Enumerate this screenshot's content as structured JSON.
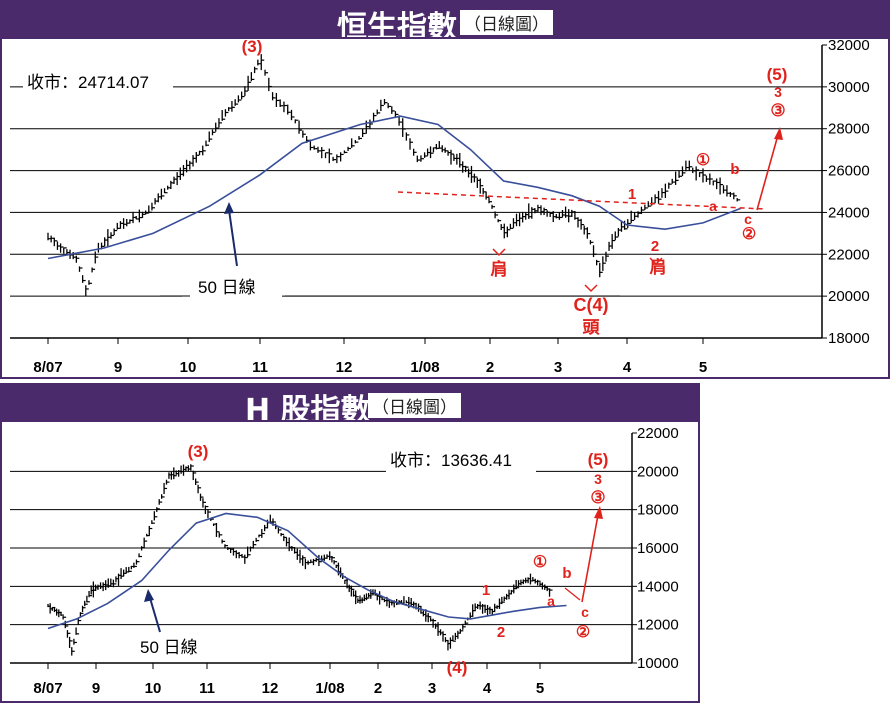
{
  "charts": [
    {
      "title": "恒生指數",
      "subtitle": "（日線圖）",
      "close_label": "收市：24714.07",
      "ma_label": "50 日線",
      "y_ticks": [
        "32000",
        "30000",
        "28000",
        "26000",
        "24000",
        "22000",
        "20000",
        "18000"
      ],
      "x_ticks": [
        "8/07",
        "9",
        "10",
        "11",
        "12",
        "1/08",
        "2",
        "3",
        "4",
        "5"
      ],
      "annotations": {
        "peak3": "(3)",
        "w5": "(5)",
        "w5_3": "3",
        "w5_circ3": "③",
        "circ1": "①",
        "b": "b",
        "a": "a",
        "c": "c",
        "circ2": "②",
        "one": "1",
        "two": "2",
        "shoulder_l": "肩",
        "shoulder_r": "肩",
        "c4": "C(4)",
        "head": "頭"
      }
    },
    {
      "title": "H 股指數",
      "subtitle": "（日線圖）",
      "close_label": "收市：13636.41",
      "ma_label": "50 日線",
      "y_ticks": [
        "22000",
        "20000",
        "18000",
        "16000",
        "14000",
        "12000",
        "10000"
      ],
      "x_ticks": [
        "8/07",
        "9",
        "10",
        "11",
        "12",
        "1/08",
        "2",
        "3",
        "4",
        "5"
      ],
      "annotations": {
        "peak3": "(3)",
        "w5": "(5)",
        "w5_3": "3",
        "w5_circ3": "③",
        "circ1": "①",
        "b": "b",
        "a": "a",
        "c": "c",
        "circ2": "②",
        "one": "1",
        "two": "2",
        "w4": "(4)"
      }
    }
  ],
  "chart_data": [
    {
      "type": "line",
      "title": "恒生指數（日線圖）",
      "ylim": [
        18000,
        32000
      ],
      "grid": true,
      "x": [
        "8/07",
        "9",
        "10",
        "11",
        "12",
        "1/08",
        "2",
        "3",
        "4",
        "5"
      ],
      "series": [
        {
          "name": "price",
          "points": [
            [
              0.0,
              22800
            ],
            [
              0.2,
              22300
            ],
            [
              0.4,
              21800
            ],
            [
              0.55,
              20200
            ],
            [
              0.7,
              22200
            ],
            [
              1.0,
              23300
            ],
            [
              1.4,
              24000
            ],
            [
              1.8,
              25500
            ],
            [
              2.2,
              27000
            ],
            [
              2.5,
              28700
            ],
            [
              2.8,
              29800
            ],
            [
              3.0,
              31400
            ],
            [
              3.15,
              29500
            ],
            [
              3.35,
              28800
            ],
            [
              3.6,
              27200
            ],
            [
              3.9,
              26500
            ],
            [
              4.2,
              27600
            ],
            [
              4.5,
              29300
            ],
            [
              4.7,
              28300
            ],
            [
              4.9,
              26500
            ],
            [
              5.2,
              27200
            ],
            [
              5.5,
              26500
            ],
            [
              5.8,
              25500
            ],
            [
              6.0,
              24500
            ],
            [
              6.2,
              23000
            ],
            [
              6.4,
              23600
            ],
            [
              6.7,
              24200
            ],
            [
              6.95,
              23800
            ],
            [
              7.2,
              24000
            ],
            [
              7.45,
              22800
            ],
            [
              7.6,
              21200
            ],
            [
              7.8,
              22800
            ],
            [
              8.0,
              23500
            ],
            [
              8.25,
              24300
            ],
            [
              8.45,
              24800
            ],
            [
              8.6,
              25500
            ],
            [
              8.8,
              26200
            ],
            [
              9.0,
              25700
            ],
            [
              9.25,
              25200
            ],
            [
              9.45,
              24600
            ]
          ]
        },
        {
          "name": "50 日線",
          "points": [
            [
              0.0,
              21800
            ],
            [
              0.8,
              22300
            ],
            [
              1.5,
              23000
            ],
            [
              2.3,
              24300
            ],
            [
              3.0,
              25800
            ],
            [
              3.5,
              27300
            ],
            [
              4.2,
              28200
            ],
            [
              4.7,
              28600
            ],
            [
              5.2,
              28200
            ],
            [
              5.7,
              27000
            ],
            [
              6.2,
              25500
            ],
            [
              6.7,
              25200
            ],
            [
              7.2,
              24800
            ],
            [
              7.6,
              24300
            ],
            [
              8.0,
              23400
            ],
            [
              8.5,
              23200
            ],
            [
              9.0,
              23500
            ],
            [
              9.5,
              24200
            ]
          ]
        }
      ]
    },
    {
      "type": "line",
      "title": "H 股指數（日線圖）",
      "ylim": [
        10000,
        22000
      ],
      "grid": true,
      "x": [
        "8/07",
        "9",
        "10",
        "11",
        "12",
        "1/08",
        "2",
        "3",
        "4",
        "5"
      ],
      "series": [
        {
          "name": "price",
          "points": [
            [
              0.0,
              13000
            ],
            [
              0.3,
              12500
            ],
            [
              0.5,
              10600
            ],
            [
              0.65,
              12400
            ],
            [
              0.9,
              13800
            ],
            [
              1.3,
              14200
            ],
            [
              1.7,
              15200
            ],
            [
              2.0,
              17500
            ],
            [
              2.3,
              19800
            ],
            [
              2.7,
              20200
            ],
            [
              2.9,
              18500
            ],
            [
              3.3,
              16000
            ],
            [
              3.6,
              15500
            ],
            [
              4.0,
              17500
            ],
            [
              4.3,
              16200
            ],
            [
              4.6,
              15200
            ],
            [
              5.0,
              15600
            ],
            [
              5.3,
              14300
            ],
            [
              5.6,
              13200
            ],
            [
              5.9,
              13700
            ],
            [
              6.2,
              13100
            ],
            [
              6.6,
              13200
            ],
            [
              7.0,
              12200
            ],
            [
              7.3,
              11000
            ],
            [
              7.5,
              11600
            ],
            [
              7.8,
              13000
            ],
            [
              8.1,
              12700
            ],
            [
              8.35,
              13400
            ],
            [
              8.6,
              14200
            ],
            [
              8.85,
              14400
            ],
            [
              9.2,
              13700
            ]
          ]
        },
        {
          "name": "50 日線",
          "points": [
            [
              0.0,
              11800
            ],
            [
              0.6,
              12300
            ],
            [
              1.2,
              13100
            ],
            [
              1.8,
              14300
            ],
            [
              2.3,
              15900
            ],
            [
              2.8,
              17300
            ],
            [
              3.3,
              17800
            ],
            [
              3.8,
              17600
            ],
            [
              4.3,
              16900
            ],
            [
              4.8,
              15500
            ],
            [
              5.3,
              14500
            ],
            [
              5.8,
              13800
            ],
            [
              6.3,
              13200
            ],
            [
              6.8,
              12800
            ],
            [
              7.3,
              12400
            ],
            [
              7.7,
              12300
            ],
            [
              8.1,
              12500
            ],
            [
              8.5,
              12700
            ],
            [
              9.0,
              12900
            ],
            [
              9.5,
              13000
            ]
          ]
        }
      ]
    }
  ]
}
